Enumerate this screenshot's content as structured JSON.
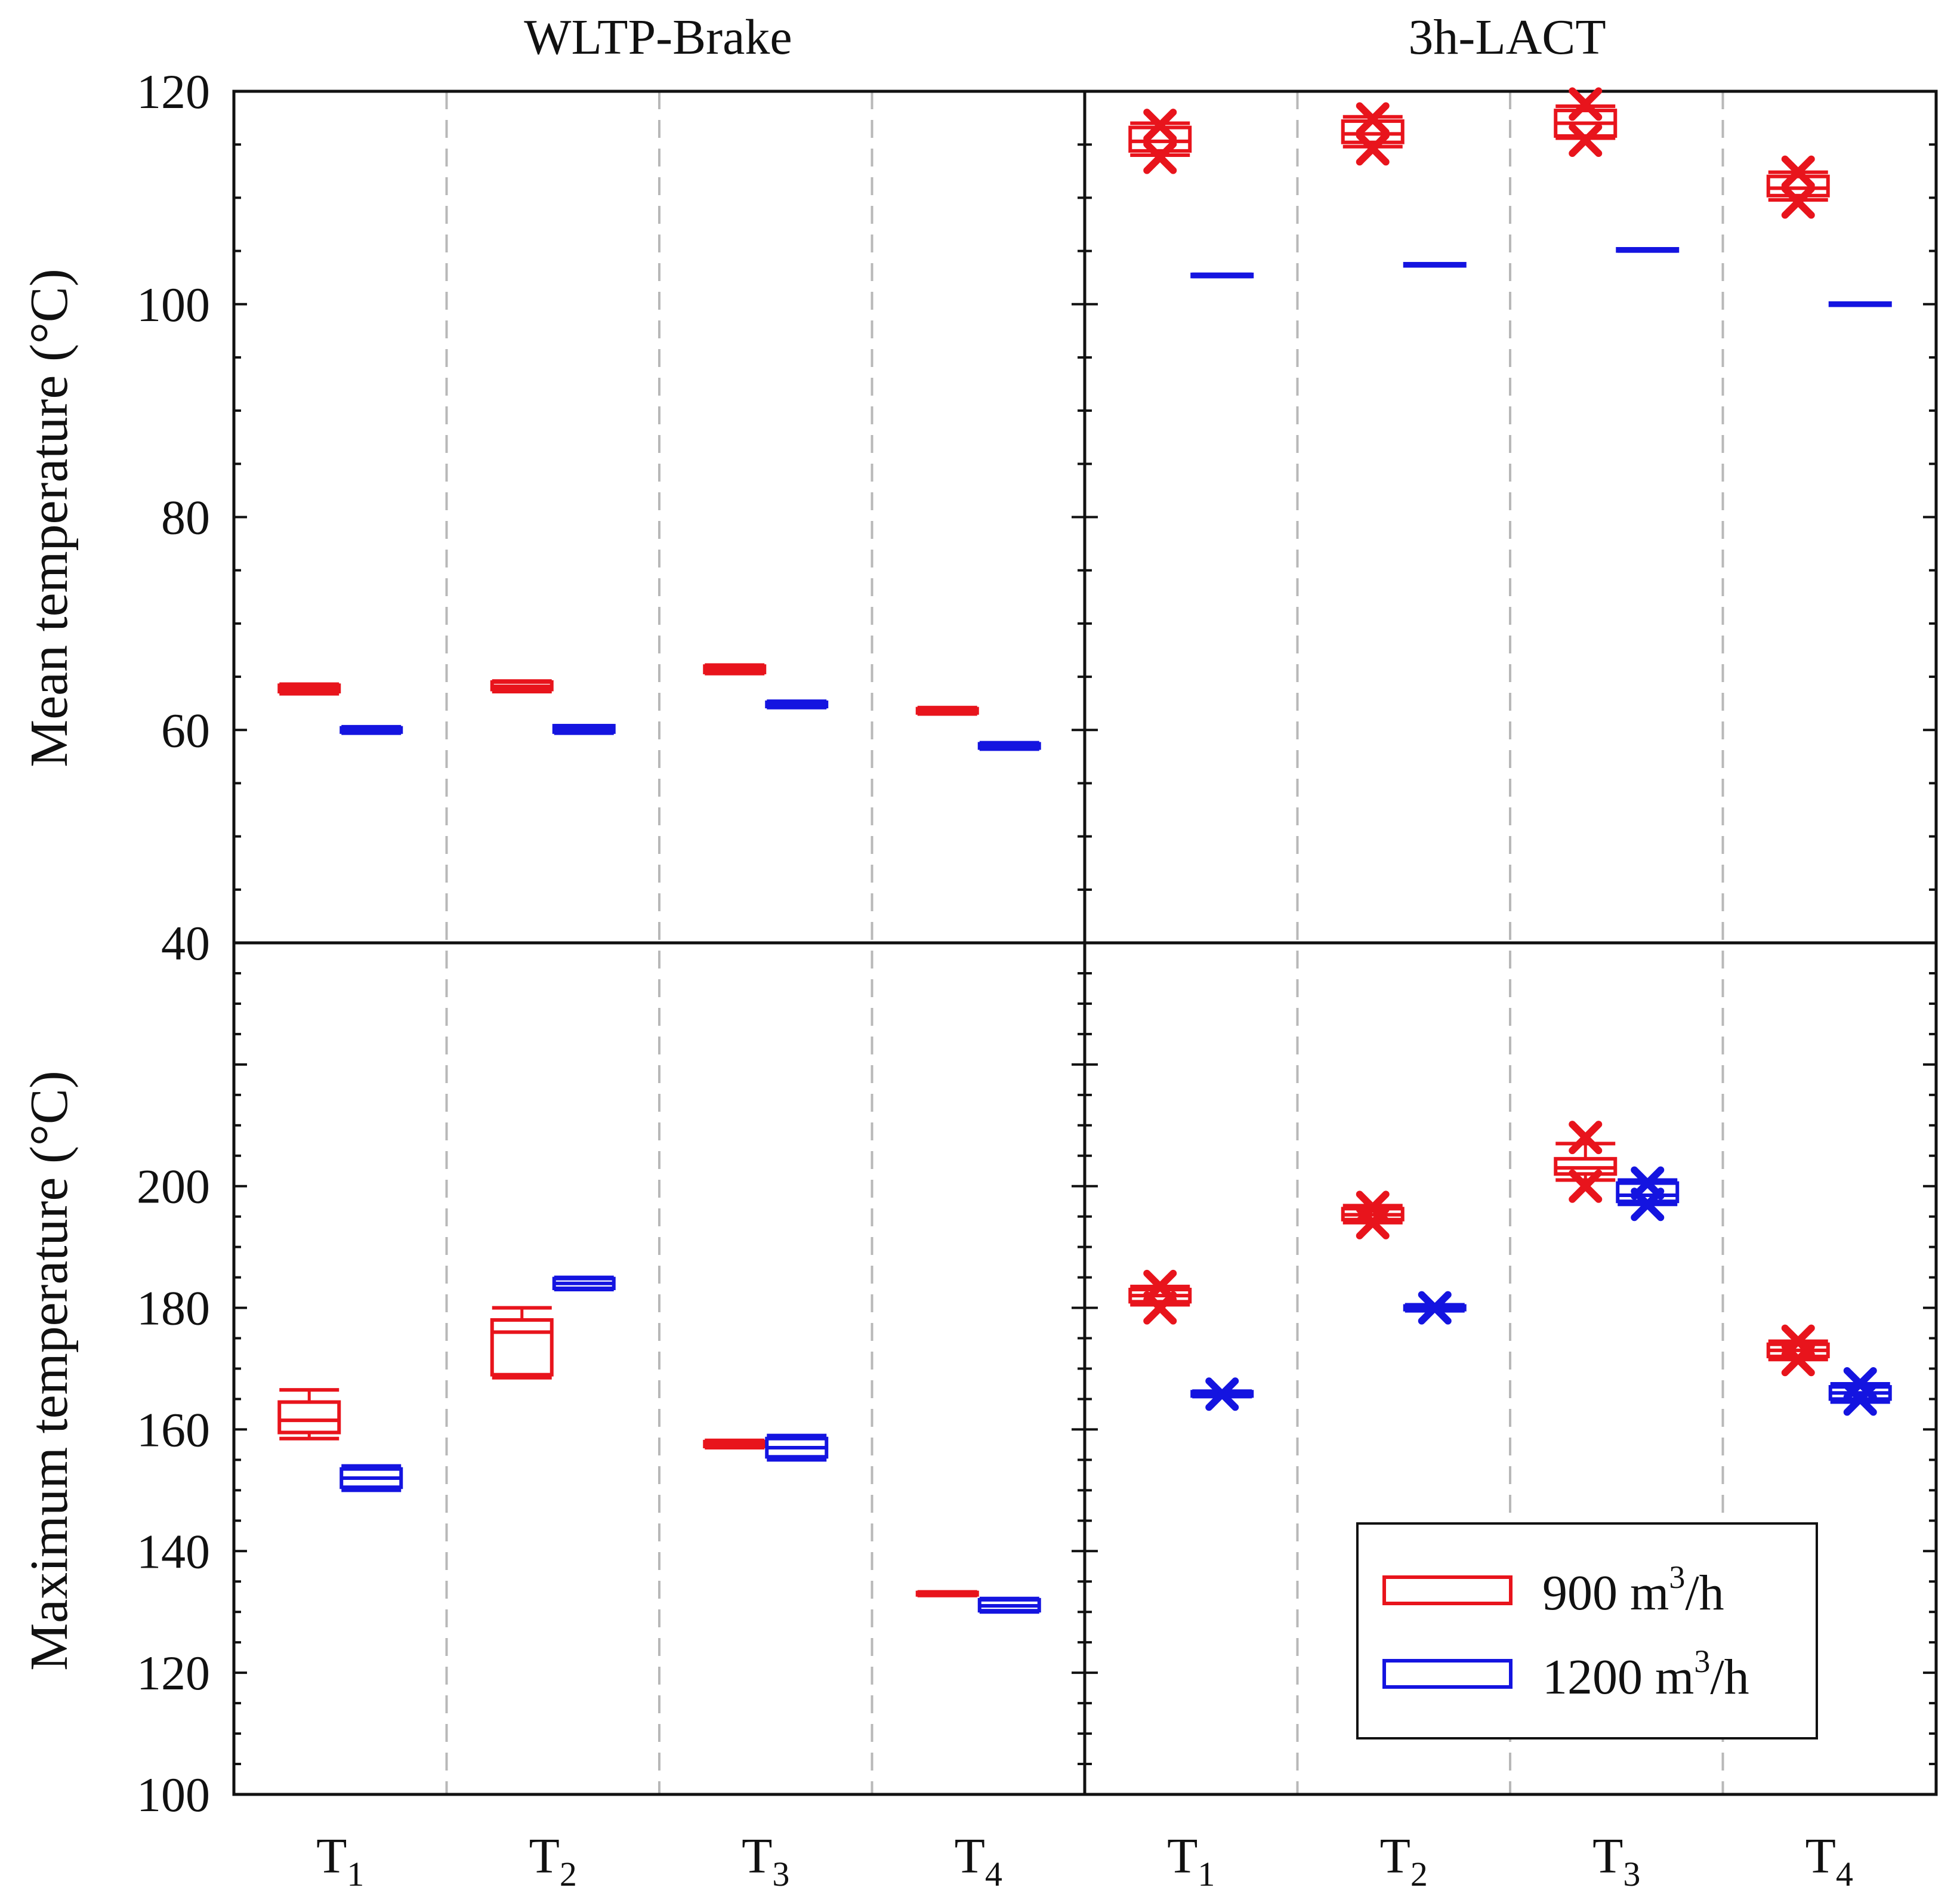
{
  "chart_data": {
    "type": "box",
    "column_titles": [
      "WLTP-Brake",
      "3h-LACT"
    ],
    "x_categories": [
      "T",
      "T",
      "T",
      "T",
      "T",
      "T",
      "T",
      "T"
    ],
    "x_subscripts": [
      "1",
      "2",
      "3",
      "4",
      "1",
      "2",
      "3",
      "4"
    ],
    "top": {
      "ylabel": "Mean temperature (°C)",
      "ylim": [
        40,
        120
      ],
      "ticks": [
        "40",
        "60",
        "80",
        "100",
        "120"
      ]
    },
    "bottom": {
      "ylabel": "Maximum temperature (°C)",
      "ylim": [
        100,
        240
      ],
      "ticks": [
        "100",
        "120",
        "140",
        "160",
        "180",
        "200"
      ]
    },
    "legend": {
      "position": "bottom-right",
      "entries": [
        {
          "label_main": "900 m",
          "sup": "3",
          "label_tail": "/h",
          "color": "#e8141c"
        },
        {
          "label_main": "1200 m",
          "sup": "3",
          "label_tail": "/h",
          "color": "#1414e0"
        }
      ]
    },
    "series_colors": [
      "#e8141c",
      "#1414e0"
    ],
    "mean_boxes": [
      [
        {
          "q1": 63.6,
          "median": 63.9,
          "q3": 64.2,
          "wlo": 63.4,
          "whi": 64.3,
          "outliers": []
        },
        {
          "q1": 59.8,
          "median": 60.0,
          "q3": 60.2,
          "wlo": 59.7,
          "whi": 60.3,
          "outliers": []
        }
      ],
      [
        {
          "q1": 63.8,
          "median": 64.1,
          "q3": 64.5,
          "wlo": 63.6,
          "whi": 64.6,
          "outliers": []
        },
        {
          "q1": 59.8,
          "median": 60.1,
          "q3": 60.4,
          "wlo": 59.7,
          "whi": 60.4,
          "outliers": []
        }
      ],
      [
        {
          "q1": 65.4,
          "median": 65.7,
          "q3": 66.0,
          "wlo": 65.3,
          "whi": 66.1,
          "outliers": []
        },
        {
          "q1": 62.2,
          "median": 62.4,
          "q3": 62.6,
          "wlo": 62.1,
          "whi": 62.7,
          "outliers": []
        }
      ],
      [
        {
          "q1": 61.6,
          "median": 61.8,
          "q3": 62.0,
          "wlo": 61.5,
          "whi": 62.1,
          "outliers": []
        },
        {
          "q1": 58.3,
          "median": 58.5,
          "q3": 58.7,
          "wlo": 58.2,
          "whi": 58.8,
          "outliers": []
        }
      ],
      [
        {
          "q1": 114.4,
          "median": 115.3,
          "q3": 116.6,
          "wlo": 114.0,
          "whi": 117.0,
          "outliers": [
            113.8,
            116.8
          ]
        },
        {
          "q1": 102.6,
          "median": 102.7,
          "q3": 102.8,
          "wlo": 102.6,
          "whi": 102.8,
          "outliers": []
        }
      ],
      [
        {
          "q1": 115.2,
          "median": 116.0,
          "q3": 117.2,
          "wlo": 114.8,
          "whi": 117.6,
          "outliers": [
            114.6,
            117.4
          ]
        },
        {
          "q1": 103.6,
          "median": 103.7,
          "q3": 103.8,
          "wlo": 103.6,
          "whi": 103.8,
          "outliers": []
        }
      ],
      [
        {
          "q1": 115.8,
          "median": 117.0,
          "q3": 118.2,
          "wlo": 115.6,
          "whi": 118.6,
          "outliers": [
            115.4,
            118.8
          ]
        },
        {
          "q1": 105.0,
          "median": 105.1,
          "q3": 105.2,
          "wlo": 105.0,
          "whi": 105.2,
          "outliers": []
        }
      ],
      [
        {
          "q1": 110.2,
          "median": 110.9,
          "q3": 112.0,
          "wlo": 109.8,
          "whi": 112.4,
          "outliers": [
            109.6,
            112.4
          ]
        },
        {
          "q1": 99.9,
          "median": 100.0,
          "q3": 100.1,
          "wlo": 99.9,
          "whi": 100.1,
          "outliers": []
        }
      ]
    ],
    "max_boxes": [
      [
        {
          "q1": 159.5,
          "median": 161.5,
          "q3": 164.5,
          "wlo": 158.5,
          "whi": 166.5,
          "outliers": []
        },
        {
          "q1": 150.5,
          "median": 152.0,
          "q3": 153.5,
          "wlo": 150.0,
          "whi": 154.0,
          "outliers": []
        }
      ],
      [
        {
          "q1": 169.0,
          "median": 176.0,
          "q3": 178.0,
          "wlo": 168.5,
          "whi": 180.0,
          "outliers": []
        },
        {
          "q1": 183.2,
          "median": 184.0,
          "q3": 184.8,
          "wlo": 183.0,
          "whi": 185.0,
          "outliers": []
        }
      ],
      [
        {
          "q1": 157.2,
          "median": 157.6,
          "q3": 158.0,
          "wlo": 157.0,
          "whi": 158.2,
          "outliers": []
        },
        {
          "q1": 155.5,
          "median": 157.0,
          "q3": 158.5,
          "wlo": 155.0,
          "whi": 159.0,
          "outliers": []
        }
      ],
      [
        {
          "q1": 132.8,
          "median": 133.0,
          "q3": 133.2,
          "wlo": 132.7,
          "whi": 133.3,
          "outliers": []
        },
        {
          "q1": 130.2,
          "median": 131.0,
          "q3": 132.0,
          "wlo": 130.0,
          "whi": 132.2,
          "outliers": []
        }
      ],
      [
        {
          "q1": 181.0,
          "median": 182.0,
          "q3": 183.0,
          "wlo": 180.5,
          "whi": 183.5,
          "outliers": [
            180.0,
            183.5
          ]
        },
        {
          "q1": 165.5,
          "median": 165.8,
          "q3": 166.2,
          "wlo": 165.4,
          "whi": 166.3,
          "outliers": [
            165.8
          ]
        }
      ],
      [
        {
          "q1": 194.5,
          "median": 195.3,
          "q3": 196.3,
          "wlo": 194.0,
          "whi": 196.8,
          "outliers": [
            194.0,
            196.5
          ]
        },
        {
          "q1": 179.7,
          "median": 180.0,
          "q3": 180.3,
          "wlo": 179.5,
          "whi": 180.5,
          "outliers": [
            180.0
          ]
        }
      ],
      [
        {
          "q1": 202.0,
          "median": 203.0,
          "q3": 204.5,
          "wlo": 201.0,
          "whi": 207.0,
          "outliers": [
            200.0,
            208.0
          ]
        },
        {
          "q1": 197.5,
          "median": 198.5,
          "q3": 200.5,
          "wlo": 197.0,
          "whi": 201.0,
          "outliers": [
            197.0,
            200.5
          ]
        }
      ],
      [
        {
          "q1": 172.0,
          "median": 173.0,
          "q3": 174.0,
          "wlo": 171.5,
          "whi": 174.5,
          "outliers": [
            171.5,
            174.5
          ]
        },
        {
          "q1": 165.0,
          "median": 166.0,
          "q3": 167.0,
          "wlo": 164.5,
          "whi": 167.5,
          "outliers": [
            165.0,
            167.5
          ]
        }
      ]
    ]
  }
}
